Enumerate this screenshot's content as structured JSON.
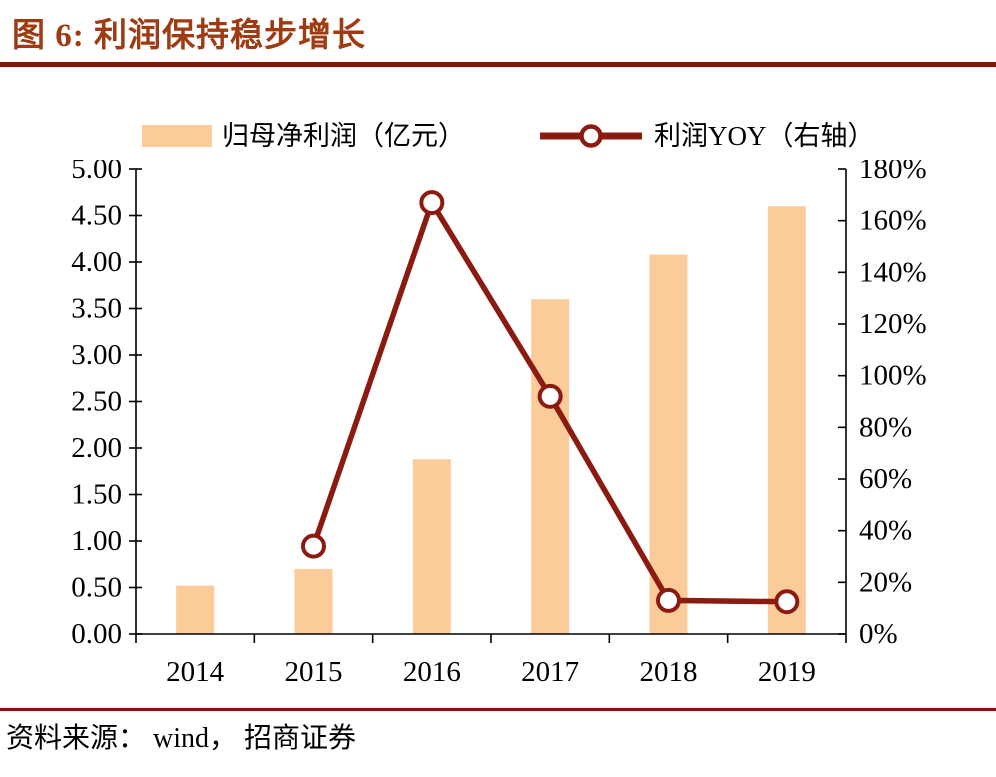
{
  "header": {
    "title": "图 6:  利润保持稳步增长"
  },
  "footer": {
    "source": "资料来源： wind， 招商证券"
  },
  "colors": {
    "title": "#9E3B12",
    "rule": "#8B1508",
    "bar_fill": "#FBCC99",
    "line": "#8B1A10",
    "axis": "#000000",
    "marker_fill": "#FFFFFF"
  },
  "chart_data": {
    "type": "bar",
    "title": "图 6:  利润保持稳步增长",
    "categories": [
      "2014",
      "2015",
      "2016",
      "2017",
      "2018",
      "2019"
    ],
    "series": [
      {
        "name": "归母净利润（亿元）",
        "type": "bar",
        "axis": "left",
        "values": [
          0.52,
          0.7,
          1.88,
          3.6,
          4.08,
          4.6
        ]
      },
      {
        "name": "利润YOY（右轴）",
        "type": "line",
        "axis": "right",
        "values": [
          null,
          34,
          167,
          92,
          13,
          12.5
        ]
      }
    ],
    "left_axis": {
      "min": 0,
      "max": 5,
      "step": 0.5,
      "decimals": 2
    },
    "right_axis": {
      "min": 0,
      "max": 180,
      "step": 20,
      "suffix": "%"
    },
    "xlabel": "",
    "ylabel": "",
    "grid": false,
    "legend_position": "top"
  }
}
